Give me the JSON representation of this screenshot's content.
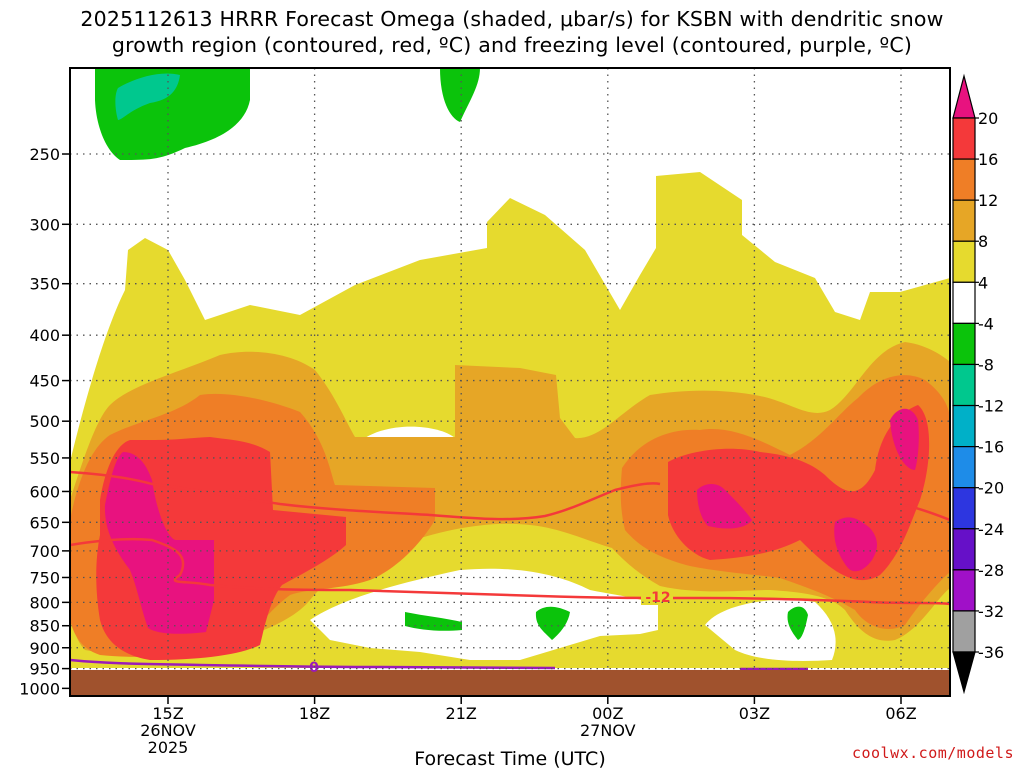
{
  "title_line1": "2025112613 HRRR Forecast Omega (shaded, μbar/s) for KSBN with dendritic snow",
  "title_line2": "growth region (contoured, red, ºC) and freezing level (contoured, purple, ºC)",
  "credit": "coolwx.com/models",
  "chart_data": {
    "type": "heatmap",
    "title": "2025112613 HRRR Forecast Omega (shaded, μbar/s) for KSBN with dendritic snow growth region (contoured, red, ºC) and freezing level (contoured, purple, ºC)",
    "xlabel": "Forecast Time (UTC)",
    "ylabel": "",
    "y_log_pressure": true,
    "y_ticks": [
      250,
      300,
      350,
      400,
      450,
      500,
      550,
      600,
      650,
      700,
      750,
      800,
      850,
      900,
      950,
      1000
    ],
    "y_range": [
      1000,
      200
    ],
    "x_ticks": [
      {
        "label": "15Z",
        "sub": [
          "26NOV",
          "2025"
        ]
      },
      {
        "label": "18Z",
        "sub": []
      },
      {
        "label": "21Z",
        "sub": []
      },
      {
        "label": "00Z",
        "sub": [
          "27NOV"
        ]
      },
      {
        "label": "03Z",
        "sub": []
      },
      {
        "label": "06Z",
        "sub": []
      }
    ],
    "grid": true,
    "colorbar": {
      "labels": [
        "20",
        "16",
        "12",
        "8",
        "4",
        "-4",
        "-8",
        "-12",
        "-16",
        "-20",
        "-24",
        "-28",
        "-32",
        "-36"
      ],
      "colors": [
        "#e8127f",
        "#f4393a",
        "#ef7e26",
        "#e6a626",
        "#e6da2e",
        "#ffffff",
        "#0bc30b",
        "#00c88e",
        "#00b0c8",
        "#1e8ce8",
        "#2d36e0",
        "#6610c8",
        "#a010c8",
        "#a0a0a0",
        "#000000"
      ]
    },
    "contours": [
      {
        "label": "-12",
        "color": "#f4393a"
      },
      {
        "label": "0",
        "color": "#9a1ab8"
      }
    ],
    "ground_color": "#a0522d"
  }
}
